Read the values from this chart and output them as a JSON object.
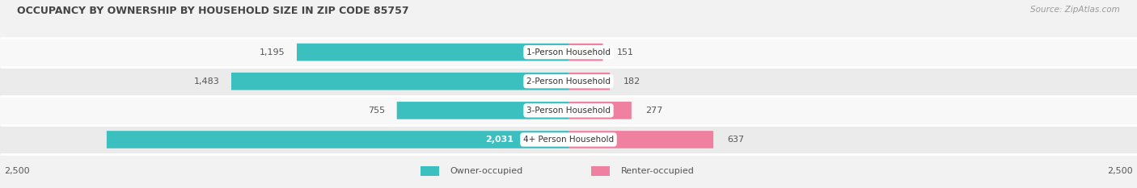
{
  "title": "OCCUPANCY BY OWNERSHIP BY HOUSEHOLD SIZE IN ZIP CODE 85757",
  "source": "Source: ZipAtlas.com",
  "categories": [
    "1-Person Household",
    "2-Person Household",
    "3-Person Household",
    "4+ Person Household"
  ],
  "owner_values": [
    1195,
    1483,
    755,
    2031
  ],
  "renter_values": [
    151,
    182,
    277,
    637
  ],
  "owner_color": "#3BBFBF",
  "renter_color": "#F080A0",
  "owner_label": "Owner-occupied",
  "renter_label": "Renter-occupied",
  "axis_max": 2500,
  "bg_color": "#f2f2f2",
  "row_colors": [
    "#f8f8f8",
    "#ebebeb",
    "#f8f8f8",
    "#ebebeb"
  ],
  "label_color": "#555555",
  "title_color": "#444444",
  "source_color": "#999999",
  "white_label_threshold": 1800,
  "title_fontsize": 9.0,
  "source_fontsize": 7.5,
  "bar_label_fontsize": 8.0,
  "cat_label_fontsize": 7.5,
  "legend_fontsize": 8.0,
  "axis_label_fontsize": 8.0
}
